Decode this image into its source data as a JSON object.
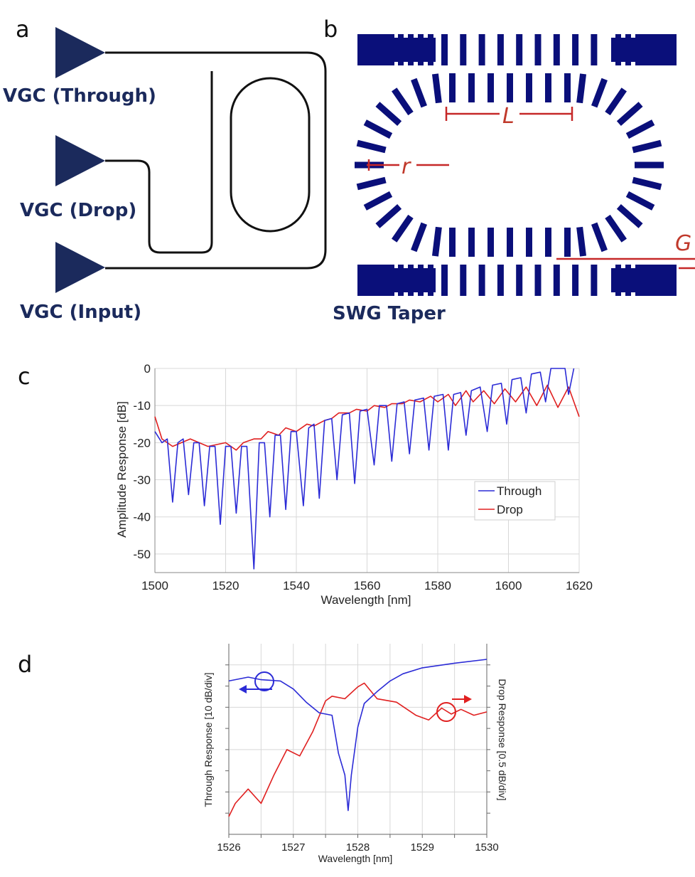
{
  "panels": {
    "a": {
      "letter": "a",
      "labels": [
        "VGC (Through)",
        "VGC (Drop)",
        "VGC (Input)"
      ]
    },
    "b": {
      "letter": "b",
      "dimension_labels": {
        "length": "L",
        "radius": "r",
        "gap": "G"
      },
      "taper_label": "SWG Taper"
    },
    "c": {
      "letter": "c"
    },
    "d": {
      "letter": "d"
    }
  },
  "colors": {
    "device": "#0a0f7a",
    "annotation": "#c62828",
    "through": "#2b2bd6",
    "drop": "#e02020",
    "grid": "#d8d8d8"
  },
  "chart_data": [
    {
      "type": "line",
      "panel": "c",
      "xlabel": "Wavelength [nm]",
      "ylabel": "Amplitude Response [dB]",
      "xlim": [
        1500,
        1620
      ],
      "ylim": [
        -55,
        0
      ],
      "xticks": [
        "1500",
        "1520",
        "1540",
        "1560",
        "1580",
        "1600",
        "1620"
      ],
      "yticks": [
        "0",
        "-10",
        "-20",
        "-30",
        "-40",
        "-50"
      ],
      "grid": true,
      "legend": "center-right",
      "series": [
        {
          "name": "Through",
          "color": "#2b2bd6",
          "x": [
            1500,
            1502,
            1503.5,
            1505,
            1506.5,
            1508,
            1509.5,
            1511,
            1512.5,
            1514,
            1515.5,
            1517,
            1518.5,
            1520,
            1521.5,
            1523,
            1524.5,
            1526,
            1528,
            1529.5,
            1531,
            1532.5,
            1534,
            1535.5,
            1537,
            1538.5,
            1540,
            1542,
            1543.5,
            1545,
            1546.5,
            1548,
            1550,
            1551.5,
            1553,
            1555,
            1556.5,
            1558,
            1560,
            1562,
            1563.5,
            1565.5,
            1567,
            1568.5,
            1570.5,
            1572,
            1573.5,
            1576,
            1577.5,
            1579,
            1581.5,
            1583,
            1584.5,
            1586.5,
            1588,
            1589.5,
            1592,
            1594,
            1595.5,
            1598,
            1599.5,
            1601,
            1603.5,
            1605,
            1606.5,
            1609,
            1610.5,
            1612,
            1616,
            1617,
            1618.5
          ],
          "y": [
            -17,
            -20,
            -19,
            -36,
            -20,
            -19,
            -34,
            -20,
            -20,
            -37,
            -21,
            -21,
            -42,
            -21,
            -21,
            -39,
            -21,
            -21,
            -54,
            -20,
            -20,
            -40,
            -18,
            -18,
            -38,
            -17,
            -17,
            -37,
            -16,
            -15,
            -35,
            -14,
            -13.5,
            -30,
            -12.5,
            -12,
            -31,
            -11.5,
            -11,
            -26,
            -10,
            -10,
            -25,
            -9.5,
            -9,
            -23,
            -8.5,
            -8,
            -22,
            -7.5,
            -7,
            -22,
            -7,
            -6.5,
            -18,
            -6,
            -5,
            -17,
            -4.5,
            -4,
            -15,
            -3,
            -2.5,
            -12,
            -1.5,
            -1,
            -9,
            0,
            0,
            -7,
            0
          ]
        },
        {
          "name": "Drop",
          "color": "#e02020",
          "x": [
            1500,
            1502,
            1505,
            1510,
            1515,
            1520,
            1523,
            1525,
            1528,
            1530,
            1532,
            1535,
            1537,
            1540,
            1543,
            1545,
            1548,
            1550,
            1552,
            1555,
            1557,
            1560,
            1562,
            1565,
            1567,
            1570,
            1572,
            1575,
            1578,
            1580,
            1583,
            1585,
            1588,
            1590,
            1593,
            1596,
            1599,
            1602,
            1605,
            1608,
            1611,
            1614,
            1617,
            1620
          ],
          "y": [
            -13,
            -19,
            -21,
            -19,
            -21,
            -20,
            -22,
            -20,
            -19,
            -19,
            -17,
            -18,
            -16,
            -17,
            -15,
            -15.5,
            -14,
            -13.5,
            -12,
            -12,
            -11,
            -11.5,
            -10,
            -10.5,
            -9.5,
            -9.5,
            -8.5,
            -9,
            -7.5,
            -9,
            -7,
            -10,
            -6,
            -9,
            -6,
            -9.5,
            -5.5,
            -9,
            -5,
            -10,
            -4.5,
            -10.5,
            -5,
            -13
          ]
        }
      ]
    },
    {
      "type": "line",
      "panel": "d",
      "xlabel": "Wavelength [nm]",
      "ylabel_left": "Through Response [10 dB/div]",
      "ylabel_right": "Drop Response [0.5 dB/div]",
      "xlim": [
        1526,
        1530
      ],
      "ylim_divisions": [
        0,
        4.5
      ],
      "xticks": [
        "1526",
        "1527",
        "1528",
        "1529",
        "1530"
      ],
      "grid": true,
      "series": [
        {
          "axis": "left",
          "color": "#2b2bd6",
          "x": [
            1526,
            1526.3,
            1526.5,
            1526.8,
            1527,
            1527.2,
            1527.4,
            1527.6,
            1527.7,
            1527.8,
            1527.85,
            1527.9,
            1528,
            1528.1,
            1528.3,
            1528.5,
            1528.7,
            1529,
            1529.5,
            1530
          ],
          "y_divisions": [
            3.62,
            3.71,
            3.65,
            3.62,
            3.43,
            3.12,
            2.87,
            2.81,
            1.91,
            1.4,
            0.56,
            1.4,
            2.53,
            3.09,
            3.37,
            3.62,
            3.79,
            3.93,
            4.04,
            4.13
          ]
        },
        {
          "axis": "right",
          "color": "#e02020",
          "x": [
            1526,
            1526.1,
            1526.3,
            1526.5,
            1526.7,
            1526.9,
            1527.1,
            1527.3,
            1527.5,
            1527.6,
            1527.8,
            1528,
            1528.1,
            1528.3,
            1528.6,
            1528.9,
            1529.1,
            1529.3,
            1529.45,
            1529.6,
            1529.8,
            1530
          ],
          "y_divisions": [
            0.42,
            0.73,
            1.07,
            0.73,
            1.4,
            2.0,
            1.85,
            2.42,
            3.15,
            3.26,
            3.2,
            3.48,
            3.57,
            3.2,
            3.12,
            2.81,
            2.7,
            2.98,
            2.84,
            2.95,
            2.81,
            2.89
          ]
        }
      ]
    }
  ]
}
